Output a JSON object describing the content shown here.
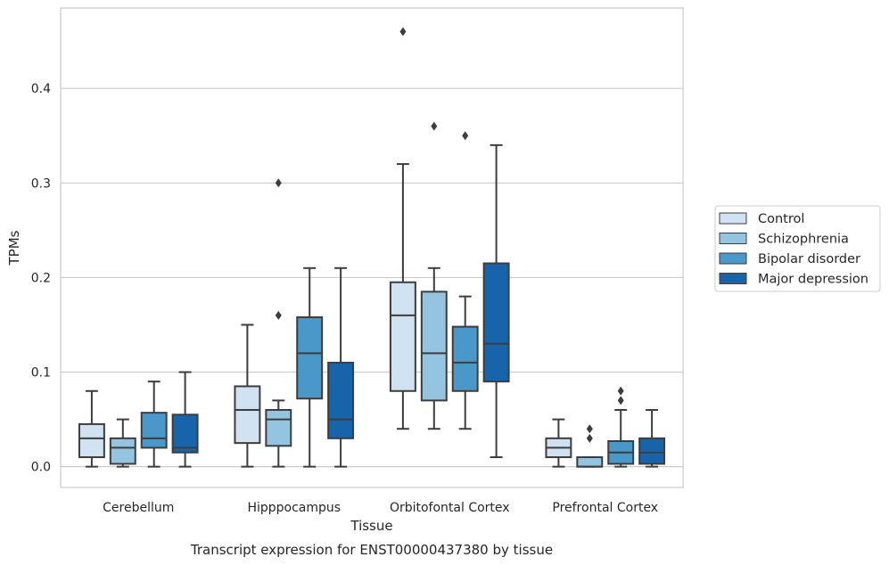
{
  "chart_data": {
    "type": "boxplot",
    "title": "",
    "caption": "Transcript expression for ENST00000437380 by tissue",
    "xlabel": "Tissue",
    "ylabel": "TPMs",
    "ylim": [
      -0.022,
      0.485
    ],
    "yticks": [
      0.0,
      0.1,
      0.2,
      0.3,
      0.4
    ],
    "ytick_labels": [
      "0.0",
      "0.1",
      "0.2",
      "0.3",
      "0.4"
    ],
    "grid": "horizontal",
    "legend_position": "right",
    "categories": [
      "Cerebellum",
      "Hipppocampus",
      "Orbitofontal Cortex",
      "Prefrontal Cortex"
    ],
    "series": [
      {
        "name": "Control",
        "color": "#d0e1f2",
        "boxes": [
          {
            "whislo": 0.0,
            "q1": 0.01,
            "med": 0.03,
            "q3": 0.045,
            "whishi": 0.08,
            "fliers": []
          },
          {
            "whislo": 0.0,
            "q1": 0.025,
            "med": 0.06,
            "q3": 0.085,
            "whishi": 0.15,
            "fliers": []
          },
          {
            "whislo": 0.04,
            "q1": 0.08,
            "med": 0.16,
            "q3": 0.195,
            "whishi": 0.32,
            "fliers": [
              0.46
            ]
          },
          {
            "whislo": 0.0,
            "q1": 0.01,
            "med": 0.02,
            "q3": 0.03,
            "whishi": 0.05,
            "fliers": []
          }
        ]
      },
      {
        "name": "Schizophrenia",
        "color": "#94c4df",
        "boxes": [
          {
            "whislo": 0.0,
            "q1": 0.003,
            "med": 0.02,
            "q3": 0.03,
            "whishi": 0.05,
            "fliers": []
          },
          {
            "whislo": 0.0,
            "q1": 0.022,
            "med": 0.05,
            "q3": 0.06,
            "whishi": 0.07,
            "fliers": [
              0.16,
              0.3
            ]
          },
          {
            "whislo": 0.04,
            "q1": 0.07,
            "med": 0.12,
            "q3": 0.185,
            "whishi": 0.21,
            "fliers": [
              0.36
            ]
          },
          {
            "whislo": 0.0,
            "q1": 0.0,
            "med": 0.0,
            "q3": 0.01,
            "whishi": 0.01,
            "fliers": [
              0.03,
              0.04
            ]
          }
        ]
      },
      {
        "name": "Bipolar disorder",
        "color": "#4a98c9",
        "boxes": [
          {
            "whislo": 0.0,
            "q1": 0.02,
            "med": 0.03,
            "q3": 0.057,
            "whishi": 0.09,
            "fliers": []
          },
          {
            "whislo": 0.0,
            "q1": 0.072,
            "med": 0.12,
            "q3": 0.158,
            "whishi": 0.21,
            "fliers": []
          },
          {
            "whislo": 0.04,
            "q1": 0.08,
            "med": 0.11,
            "q3": 0.148,
            "whishi": 0.18,
            "fliers": [
              0.35
            ]
          },
          {
            "whislo": 0.0,
            "q1": 0.003,
            "med": 0.015,
            "q3": 0.027,
            "whishi": 0.06,
            "fliers": [
              0.07,
              0.08
            ]
          }
        ]
      },
      {
        "name": "Major depression",
        "color": "#1764ab",
        "boxes": [
          {
            "whislo": 0.0,
            "q1": 0.015,
            "med": 0.02,
            "q3": 0.055,
            "whishi": 0.1,
            "fliers": []
          },
          {
            "whislo": 0.0,
            "q1": 0.03,
            "med": 0.05,
            "q3": 0.11,
            "whishi": 0.21,
            "fliers": []
          },
          {
            "whislo": 0.01,
            "q1": 0.09,
            "med": 0.13,
            "q3": 0.215,
            "whishi": 0.34,
            "fliers": []
          },
          {
            "whislo": 0.0,
            "q1": 0.003,
            "med": 0.015,
            "q3": 0.03,
            "whishi": 0.06,
            "fliers": []
          }
        ]
      }
    ]
  }
}
